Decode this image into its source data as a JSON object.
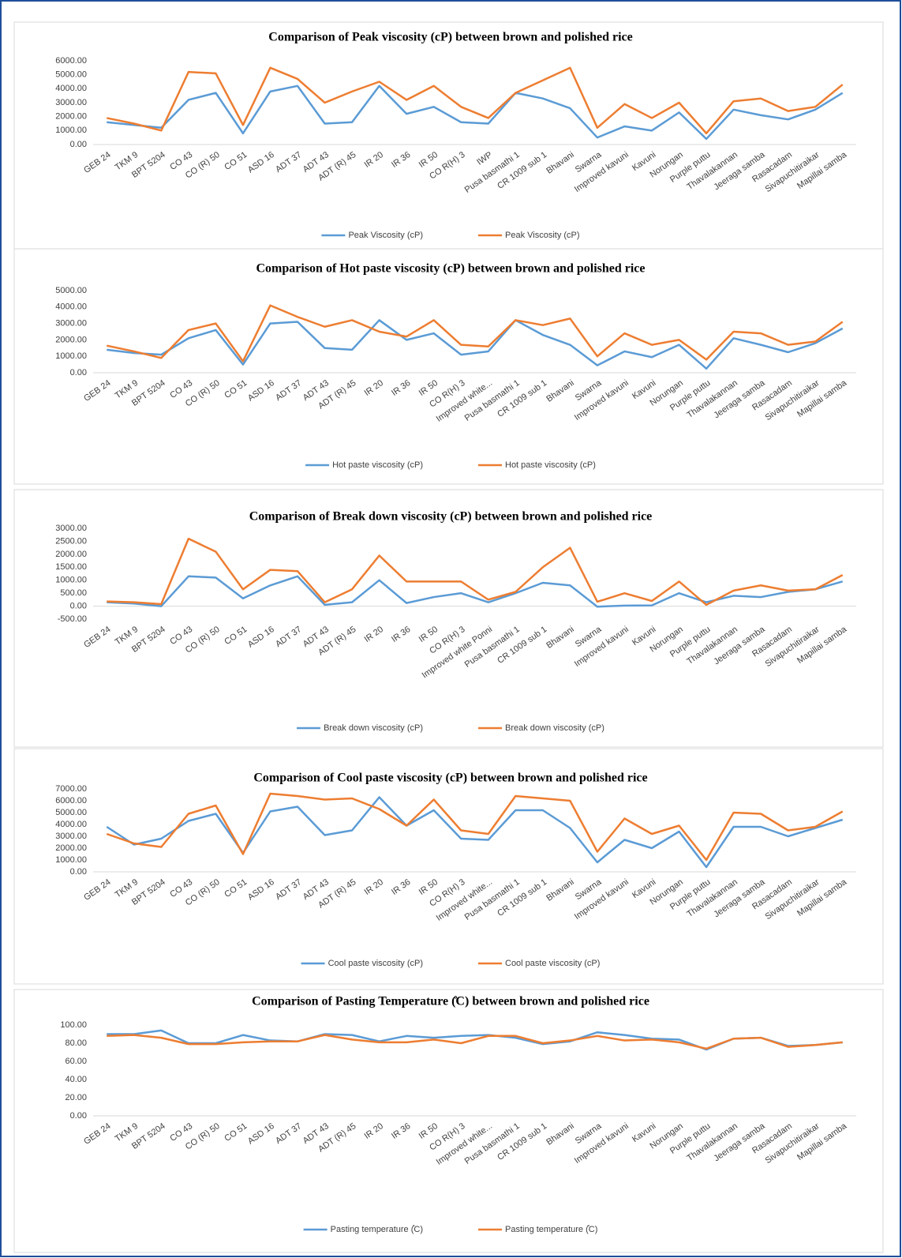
{
  "chart_data": [
    {
      "type": "line",
      "title": "Comparison of Peak viscosity (cP)  between brown and polished rice",
      "categories": [
        "GEB 24",
        "TKM 9",
        "BPT 5204",
        "CO 43",
        "CO (R) 50",
        "CO 51",
        "ASD 16",
        "ADT 37",
        "ADT 43",
        "ADT (R) 45",
        "IR 20",
        "IR 36",
        "IR 50",
        "CO R(H) 3",
        "IWP",
        "Pusa basmathi 1",
        "CR 1009 sub 1",
        "Bhavani",
        "Swarna",
        "Improved kavuni",
        "Kavuni",
        "Norungan",
        "Purple puttu",
        "Thavalakannan",
        "Jeeraga samba",
        "Rasacadam",
        "Sivapuchitiraikar",
        "Mapillai samba"
      ],
      "series": [
        {
          "name": "Peak  Viscosity (cP)",
          "color": "#5b9bd5",
          "values": [
            1600,
            1400,
            1200,
            3200,
            3700,
            800,
            3800,
            4200,
            1500,
            1600,
            4200,
            2200,
            2700,
            1600,
            1500,
            3700,
            3300,
            2600,
            500,
            1300,
            1000,
            2300,
            400,
            2500,
            2100,
            1800,
            2500,
            3700
          ]
        },
        {
          "name": "Peak  Viscosity (cP)",
          "color": "#ed7d31",
          "values": [
            1900,
            1500,
            1000,
            5200,
            5100,
            1400,
            5500,
            4700,
            3000,
            3800,
            4500,
            3200,
            4200,
            2700,
            1900,
            3700,
            4600,
            5500,
            1200,
            2900,
            1900,
            3000,
            800,
            3100,
            3300,
            2400,
            2700,
            4300
          ]
        }
      ],
      "ylim": [
        0,
        6000
      ],
      "yticks": [
        {
          "value": 0,
          "label": "0.00"
        },
        {
          "value": 1000,
          "label": "1000.00"
        },
        {
          "value": 2000,
          "label": "2000.00"
        },
        {
          "value": 3000,
          "label": "3000.00"
        },
        {
          "value": 4000,
          "label": "4000.00"
        },
        {
          "value": 5000,
          "label": "5000.00"
        },
        {
          "value": 6000,
          "label": "6000.00"
        }
      ]
    },
    {
      "type": "line",
      "title": "Comparison of Hot paste viscosity (cP)  between brown and polished rice",
      "categories": [
        "GEB 24",
        "TKM 9",
        "BPT 5204",
        "CO 43",
        "CO (R) 50",
        "CO 51",
        "ASD 16",
        "ADT 37",
        "ADT 43",
        "ADT (R) 45",
        "IR 20",
        "IR 36",
        "IR 50",
        "CO R(H) 3",
        "Improved white...",
        "Pusa basmathi 1",
        "CR 1009 sub 1",
        "Bhavani",
        "Swarna",
        "Improved kavuni",
        "Kavuni",
        "Norungan",
        "Purple puttu",
        "Thavalakannan",
        "Jeeraga samba",
        "Rasacadam",
        "Sivapuchitiraikar",
        "Mapillai samba"
      ],
      "series": [
        {
          "name": "Hot paste viscosity (cP)",
          "color": "#5b9bd5",
          "values": [
            1400,
            1200,
            1100,
            2100,
            2600,
            500,
            3000,
            3100,
            1500,
            1400,
            3200,
            2000,
            2400,
            1100,
            1300,
            3200,
            2300,
            1700,
            450,
            1300,
            950,
            1700,
            250,
            2100,
            1700,
            1250,
            1800,
            2700
          ]
        },
        {
          "name": "Hot paste viscosity (cP)",
          "color": "#ed7d31",
          "values": [
            1650,
            1300,
            900,
            2600,
            3000,
            700,
            4100,
            3400,
            2800,
            3200,
            2500,
            2200,
            3200,
            1700,
            1600,
            3200,
            2900,
            3300,
            1000,
            2400,
            1700,
            2000,
            800,
            2500,
            2400,
            1700,
            1900,
            3100
          ]
        }
      ],
      "ylim": [
        0,
        5000
      ],
      "yticks": [
        {
          "value": 0,
          "label": "0.00"
        },
        {
          "value": 1000,
          "label": "1000.00"
        },
        {
          "value": 2000,
          "label": "2000.00"
        },
        {
          "value": 3000,
          "label": "3000.00"
        },
        {
          "value": 4000,
          "label": "4000.00"
        },
        {
          "value": 5000,
          "label": "5000.00"
        }
      ]
    },
    {
      "type": "line",
      "title": "Comparison of Break down viscosity (cP)  between brown and polished rice",
      "categories": [
        "GEB 24",
        "TKM 9",
        "BPT 5204",
        "CO 43",
        "CO (R) 50",
        "CO 51",
        "ASD 16",
        "ADT 37",
        "ADT 43",
        "ADT (R) 45",
        "IR 20",
        "IR 36",
        "IR 50",
        "CO R(H) 3",
        "Improved white Ponni",
        "Pusa basmathi 1",
        "CR 1009 sub 1",
        "Bhavani",
        "Swarna",
        "Improved kavuni",
        "Kavuni",
        "Norungan",
        "Purple puttu",
        "Thavalakannan",
        "Jeeraga samba",
        "Rasacadam",
        "Sivapuchitiraikar",
        "Mapillai samba"
      ],
      "series": [
        {
          "name": "Break down viscosity (cP)",
          "color": "#5b9bd5",
          "values": [
            150,
            100,
            0,
            1150,
            1100,
            300,
            800,
            1150,
            50,
            150,
            1000,
            120,
            350,
            500,
            150,
            500,
            900,
            800,
            -20,
            20,
            30,
            500,
            150,
            400,
            350,
            550,
            650,
            950
          ]
        },
        {
          "name": "Break down viscosity (cP)",
          "color": "#ed7d31",
          "values": [
            180,
            150,
            80,
            2600,
            2100,
            650,
            1400,
            1350,
            150,
            650,
            1950,
            950,
            950,
            950,
            250,
            550,
            1500,
            2250,
            170,
            500,
            200,
            950,
            50,
            600,
            800,
            600,
            650,
            1200
          ]
        }
      ],
      "ylim": [
        -500,
        3000
      ],
      "yticks": [
        {
          "value": -500,
          "label": "-500.00"
        },
        {
          "value": 0,
          "label": "0.00"
        },
        {
          "value": 500,
          "label": "500.00"
        },
        {
          "value": 1000,
          "label": "1000.00"
        },
        {
          "value": 1500,
          "label": "1500.00"
        },
        {
          "value": 2000,
          "label": "2000.00"
        },
        {
          "value": 2500,
          "label": "2500.00"
        },
        {
          "value": 3000,
          "label": "3000.00"
        }
      ]
    },
    {
      "type": "line",
      "title": "Comparison of Cool paste viscosity (cP)  between brown and polished rice",
      "categories": [
        "GEB 24",
        "TKM 9",
        "BPT 5204",
        "CO 43",
        "CO (R) 50",
        "CO 51",
        "ASD 16",
        "ADT 37",
        "ADT 43",
        "ADT (R) 45",
        "IR 20",
        "IR 36",
        "IR 50",
        "CO R(H) 3",
        "Improved white...",
        "Pusa basmathi 1",
        "CR 1009 sub 1",
        "Bhavani",
        "Swarna",
        "Improved kavuni",
        "Kavuni",
        "Norungan",
        "Purple puttu",
        "Thavalakannan",
        "Jeeraga samba",
        "Rasacadam",
        "Sivapuchitiraikar",
        "Mapillai samba"
      ],
      "series": [
        {
          "name": "Cool paste viscosity (cP)",
          "color": "#5b9bd5",
          "values": [
            3800,
            2300,
            2800,
            4300,
            4900,
            1600,
            5100,
            5500,
            3100,
            3500,
            6300,
            3900,
            5200,
            2800,
            2700,
            5200,
            5200,
            3700,
            800,
            2700,
            2000,
            3400,
            400,
            3800,
            3800,
            3000,
            3700,
            4400
          ]
        },
        {
          "name": "Cool paste viscosity (cP)",
          "color": "#ed7d31",
          "values": [
            3200,
            2400,
            2100,
            4900,
            5600,
            1500,
            6600,
            6400,
            6100,
            6200,
            5300,
            3900,
            6100,
            3500,
            3200,
            6400,
            6200,
            6000,
            1700,
            4500,
            3200,
            3900,
            1000,
            5000,
            4900,
            3500,
            3800,
            5100
          ]
        }
      ],
      "ylim": [
        0,
        7000
      ],
      "yticks": [
        {
          "value": 0,
          "label": "0.00"
        },
        {
          "value": 1000,
          "label": "1000.00"
        },
        {
          "value": 2000,
          "label": "2000.00"
        },
        {
          "value": 3000,
          "label": "3000.00"
        },
        {
          "value": 4000,
          "label": "4000.00"
        },
        {
          "value": 5000,
          "label": "5000.00"
        },
        {
          "value": 6000,
          "label": "6000.00"
        },
        {
          "value": 7000,
          "label": "7000.00"
        }
      ]
    },
    {
      "type": "line",
      "title": "Comparison of Pasting Temperature (̊C)  between brown and polished rice",
      "categories": [
        "GEB 24",
        "TKM 9",
        "BPT 5204",
        "CO 43",
        "CO (R) 50",
        "CO 51",
        "ASD 16",
        "ADT 37",
        "ADT 43",
        "ADT (R) 45",
        "IR 20",
        "IR 36",
        "IR 50",
        "CO R(H) 3",
        "Improved white...",
        "Pusa basmathi 1",
        "CR 1009 sub 1",
        "Bhavani",
        "Swarna",
        "Improved kavuni",
        "Kavuni",
        "Norungan",
        "Purple puttu",
        "Thavalakannan",
        "Jeeraga samba",
        "Rasacadam",
        "Sivapuchitiraikar",
        "Mapillai samba"
      ],
      "series": [
        {
          "name": "Pasting temperature (̊C)",
          "color": "#5b9bd5",
          "values": [
            90,
            90,
            94,
            80,
            80,
            89,
            83,
            82,
            90,
            89,
            82,
            88,
            86,
            88,
            89,
            86,
            79,
            82,
            92,
            89,
            85,
            84,
            73,
            85,
            86,
            77,
            78,
            81
          ]
        },
        {
          "name": "Pasting temperature (̊C)",
          "color": "#ed7d31",
          "values": [
            88,
            89,
            86,
            79,
            79,
            81,
            82,
            82,
            89,
            84,
            81,
            81,
            84,
            80,
            88,
            88,
            80,
            83,
            88,
            83,
            84,
            81,
            74,
            85,
            86,
            76,
            78,
            81
          ]
        }
      ],
      "ylim": [
        0,
        100
      ],
      "yticks": [
        {
          "value": 0,
          "label": "0.00"
        },
        {
          "value": 20,
          "label": "20.00"
        },
        {
          "value": 40,
          "label": "40.00"
        },
        {
          "value": 60,
          "label": "60.00"
        },
        {
          "value": 80,
          "label": "80.00"
        },
        {
          "value": 100,
          "label": "100.00"
        }
      ]
    }
  ]
}
